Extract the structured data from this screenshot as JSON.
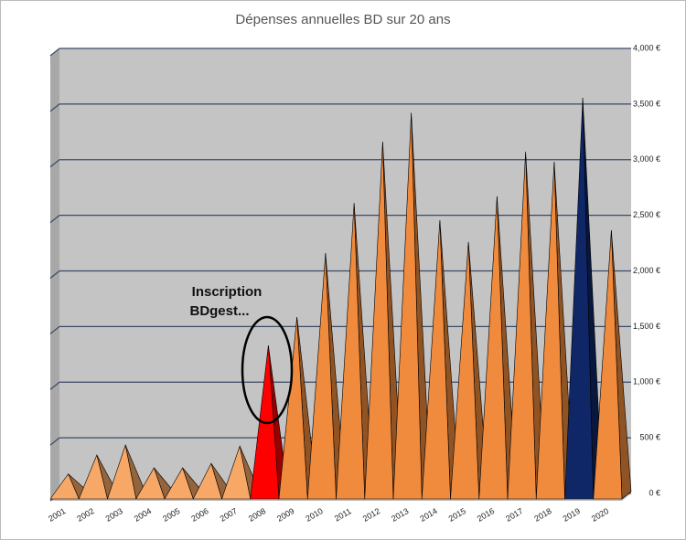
{
  "chart_data": {
    "type": "pyramid",
    "title": "Dépenses annuelles BD sur 20 ans",
    "categories": [
      "2001",
      "2002",
      "2003",
      "2004",
      "2005",
      "2006",
      "2007",
      "2008",
      "2009",
      "2010",
      "2011",
      "2012",
      "2013",
      "2014",
      "2015",
      "2016",
      "2017",
      "2018",
      "2019",
      "2020"
    ],
    "values": [
      175,
      345,
      435,
      230,
      230,
      270,
      425,
      1330,
      1585,
      2160,
      2610,
      3160,
      3420,
      2455,
      2260,
      2670,
      3070,
      2980,
      3555,
      2365
    ],
    "colors": [
      "#f7a866",
      "#f7a866",
      "#f7a866",
      "#f7a866",
      "#f7a866",
      "#f7a866",
      "#f7a866",
      "#ff0000",
      "#f08a3c",
      "#f08a3c",
      "#f08a3c",
      "#f08a3c",
      "#f08a3c",
      "#f08a3c",
      "#f08a3c",
      "#f08a3c",
      "#f08a3c",
      "#f08a3c",
      "#0f2766",
      "#f08a3c"
    ],
    "ylim": [
      0,
      4000
    ],
    "yticks": [
      {
        "value": 0,
        "label": "0 €"
      },
      {
        "value": 500,
        "label": "500 €"
      },
      {
        "value": 1000,
        "label": "1,000 €"
      },
      {
        "value": 1500,
        "label": "1,500 €"
      },
      {
        "value": 2000,
        "label": "2,000 €"
      },
      {
        "value": 2500,
        "label": "2,500 €"
      },
      {
        "value": 3000,
        "label": "3,000 €"
      },
      {
        "value": 3500,
        "label": "3,500 €"
      },
      {
        "value": 4000,
        "label": "4,000 €"
      }
    ],
    "grid": true,
    "annotation": [
      "Inscription",
      "BDgest..."
    ]
  }
}
